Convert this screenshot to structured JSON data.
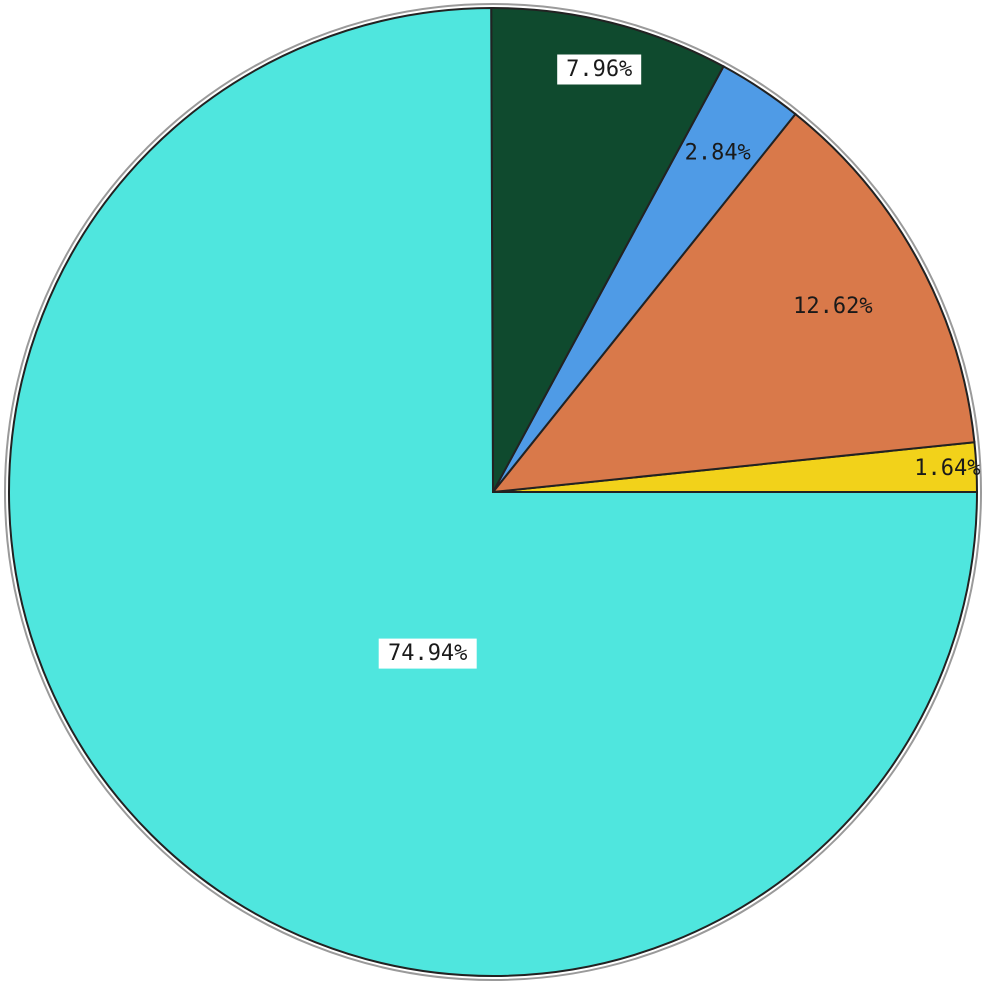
{
  "chart_data": {
    "type": "pie",
    "title": "",
    "slices": [
      {
        "label": "1.64%",
        "value": 1.64,
        "color": "#f2d21a"
      },
      {
        "label": "12.62%",
        "value": 12.62,
        "color": "#d9794a"
      },
      {
        "label": "2.84%",
        "value": 2.84,
        "color": "#4f9be6"
      },
      {
        "label": "7.96%",
        "value": 7.96,
        "color": "#0f4a2e"
      },
      {
        "label": "74.94%",
        "value": 74.94,
        "color": "#4fe6de"
      }
    ],
    "start_direction": "east",
    "direction": "counterclockwise"
  }
}
